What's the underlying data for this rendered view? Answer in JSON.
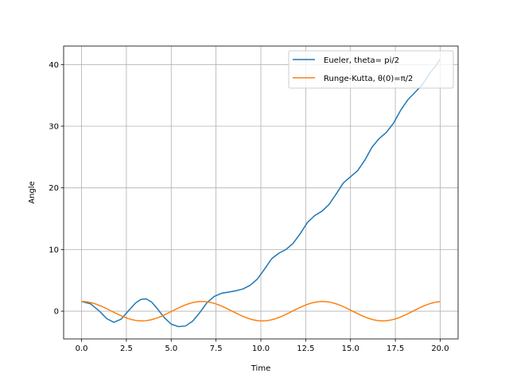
{
  "chart_data": {
    "type": "line",
    "xlabel": "Time",
    "ylabel": "Angle",
    "xlim": [
      -1.0,
      21.0
    ],
    "ylim": [
      -4.5,
      43.0
    ],
    "grid": true,
    "legend_position": "top-right",
    "x_ticks": [
      0.0,
      2.5,
      5.0,
      7.5,
      10.0,
      12.5,
      15.0,
      17.5,
      20.0
    ],
    "x_tick_labels": [
      "0.0",
      "2.5",
      "5.0",
      "7.5",
      "10.0",
      "12.5",
      "15.0",
      "17.5",
      "20.0"
    ],
    "y_ticks": [
      0,
      10,
      20,
      30,
      40
    ],
    "y_tick_labels": [
      "0",
      "10",
      "20",
      "30",
      "40"
    ],
    "series": [
      {
        "name": "Eueler, theta= pi/2",
        "color": "#1f77b4",
        "x": [
          0,
          0.5,
          1.0,
          1.4,
          1.8,
          2.2,
          2.6,
          3.0,
          3.3,
          3.6,
          3.9,
          4.2,
          4.6,
          5.0,
          5.4,
          5.8,
          6.2,
          6.6,
          7.0,
          7.4,
          7.8,
          8.2,
          8.6,
          9.0,
          9.4,
          9.8,
          10.2,
          10.6,
          11.0,
          11.4,
          11.8,
          12.2,
          12.6,
          13.0,
          13.4,
          13.8,
          14.2,
          14.6,
          15.0,
          15.4,
          15.8,
          16.2,
          16.6,
          17.0,
          17.4,
          17.8,
          18.2,
          18.6,
          19.0,
          19.4,
          19.8,
          20.0
        ],
        "values": [
          1.57,
          1.2,
          0.0,
          -1.2,
          -1.8,
          -1.3,
          0.0,
          1.3,
          1.9,
          2.0,
          1.5,
          0.5,
          -1.0,
          -2.1,
          -2.5,
          -2.4,
          -1.6,
          -0.2,
          1.4,
          2.4,
          2.9,
          3.1,
          3.3,
          3.6,
          4.2,
          5.2,
          6.8,
          8.5,
          9.4,
          10.0,
          11.0,
          12.6,
          14.4,
          15.5,
          16.2,
          17.3,
          19.0,
          20.8,
          21.8,
          22.8,
          24.5,
          26.6,
          28.0,
          29.0,
          30.5,
          32.6,
          34.3,
          35.5,
          36.7,
          38.5,
          40.0,
          40.9
        ]
      },
      {
        "name": "Runge-Kutta, θ(0)=π/2",
        "color": "#ff7f0e",
        "x": [],
        "values": [],
        "amplitude": 1.5708,
        "period": 6.72
      }
    ]
  }
}
